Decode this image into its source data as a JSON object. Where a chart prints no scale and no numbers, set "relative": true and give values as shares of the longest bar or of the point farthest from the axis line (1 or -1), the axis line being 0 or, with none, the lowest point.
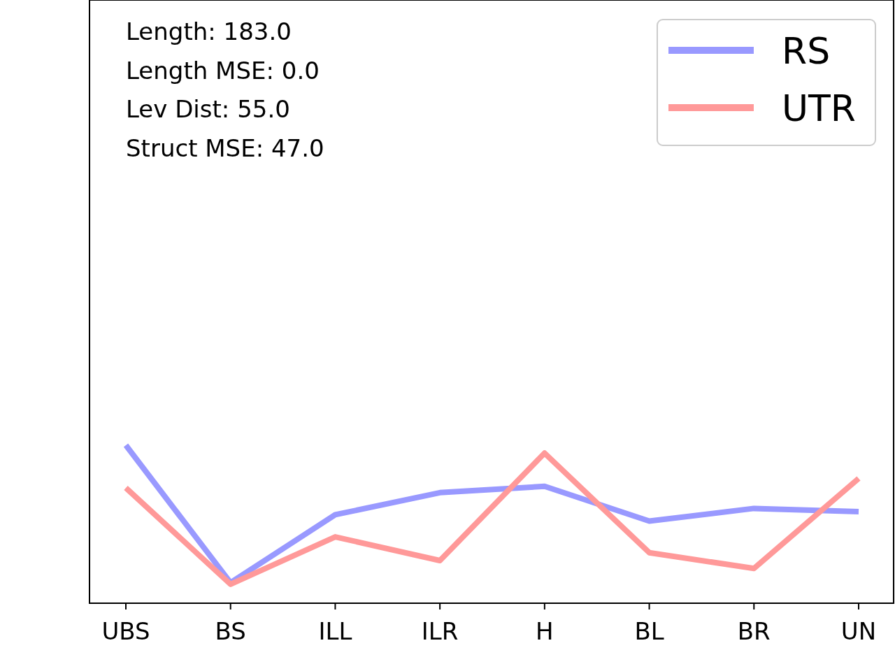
{
  "chart_data": {
    "type": "line",
    "relative": true,
    "categories": [
      "UBS",
      "BS",
      "ILL",
      "ILR",
      "H",
      "BL",
      "BR",
      "UN"
    ],
    "series": [
      {
        "name": "RS",
        "color": "#9999ff",
        "values": [
          1,
          0.13,
          0.56,
          0.7,
          0.74,
          0.52,
          0.6,
          0.58
        ]
      },
      {
        "name": "UTR",
        "color": "#ff9999",
        "values": [
          0.73,
          0.12,
          0.42,
          0.27,
          0.95,
          0.32,
          0.22,
          0.79
        ]
      }
    ],
    "annotations": [
      "Length: 183.0",
      "Length MSE: 0.0",
      "Lev Dist: 55.0",
      "Struct MSE: 47.0"
    ],
    "legend": "top right",
    "marker": "none",
    "line_style": "solid"
  }
}
